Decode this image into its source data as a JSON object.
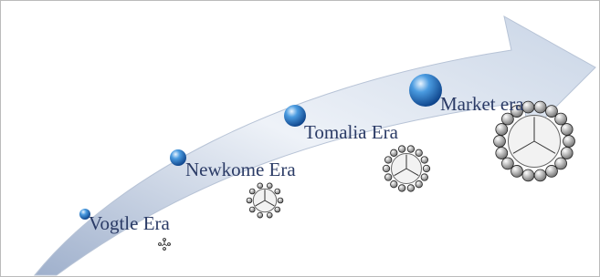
{
  "nodes": [
    {
      "label": "Vogtle Era"
    },
    {
      "label": "Newkome Era"
    },
    {
      "label": "Tomalia Era"
    },
    {
      "label": "Market era"
    }
  ]
}
